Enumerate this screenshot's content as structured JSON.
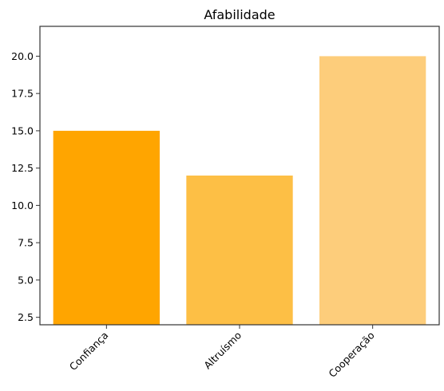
{
  "chart_data": {
    "type": "bar",
    "title": "Afabilidade",
    "xlabel": "",
    "ylabel": "",
    "categories": [
      "Confiança",
      "Altruísmo",
      "Cooperação"
    ],
    "values": [
      15,
      12,
      20
    ],
    "colors": [
      "#FFA500",
      "#FDBF45",
      "#FDCD7B"
    ],
    "ylim": [
      2,
      22
    ],
    "yticks": [
      "2.5",
      "5.0",
      "7.5",
      "10.0",
      "12.5",
      "15.0",
      "17.5",
      "20.0"
    ],
    "grid": false,
    "legend": "none"
  }
}
